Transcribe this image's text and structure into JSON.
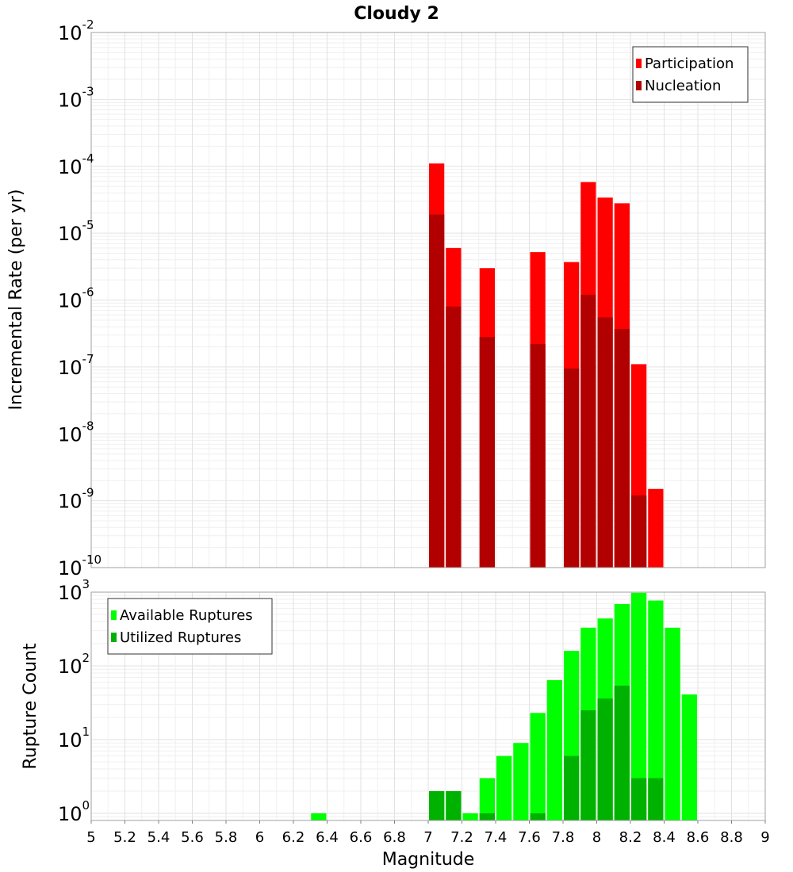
{
  "chart_data": [
    {
      "type": "bar",
      "title": "Cloudy 2",
      "xlabel": "",
      "ylabel": "Incremental Rate (per yr)",
      "yscale": "log",
      "ylim": [
        1e-10,
        0.01
      ],
      "xlim": [
        5,
        9
      ],
      "bar_width": 0.1,
      "y_tick_labels": [
        {
          "base": "10",
          "exp": "-10"
        },
        {
          "base": "10",
          "exp": "-9"
        },
        {
          "base": "10",
          "exp": "-8"
        },
        {
          "base": "10",
          "exp": "-7"
        },
        {
          "base": "10",
          "exp": "-6"
        },
        {
          "base": "10",
          "exp": "-5"
        },
        {
          "base": "10",
          "exp": "-4"
        },
        {
          "base": "10",
          "exp": "-3"
        },
        {
          "base": "10",
          "exp": "-2"
        }
      ],
      "legend": {
        "position": "top-right",
        "entries": [
          "Participation",
          "Nucleation"
        ]
      },
      "series": [
        {
          "name": "Participation",
          "color": "#ff0000",
          "x": [
            7.05,
            7.15,
            7.35,
            7.65,
            7.85,
            7.95,
            8.05,
            8.15,
            8.25,
            8.35
          ],
          "values": [
            0.00011,
            6e-06,
            3e-06,
            5.2e-06,
            3.7e-06,
            5.8e-05,
            3.4e-05,
            2.8e-05,
            1.1e-07,
            1.5e-09
          ]
        },
        {
          "name": "Nucleation",
          "color": "#b20000",
          "x": [
            7.05,
            7.15,
            7.35,
            7.65,
            7.85,
            7.95,
            8.05,
            8.15,
            8.25
          ],
          "values": [
            1.9e-05,
            8e-07,
            2.8e-07,
            2.2e-07,
            9.5e-08,
            1.2e-06,
            5.5e-07,
            3.7e-07,
            1.2e-09
          ]
        }
      ]
    },
    {
      "type": "bar",
      "title": "",
      "xlabel": "Magnitude",
      "ylabel": "Rupture Count",
      "yscale": "log",
      "ylim": [
        0.8,
        1000
      ],
      "xlim": [
        5,
        9
      ],
      "bar_width": 0.1,
      "x_ticks": [
        "5",
        "5.2",
        "5.4",
        "5.6",
        "5.8",
        "6",
        "6.2",
        "6.4",
        "6.6",
        "6.8",
        "7",
        "7.2",
        "7.4",
        "7.6",
        "7.8",
        "8",
        "8.2",
        "8.4",
        "8.6",
        "8.8",
        "9"
      ],
      "y_tick_labels": [
        {
          "base": "10",
          "exp": "0"
        },
        {
          "base": "10",
          "exp": "1"
        },
        {
          "base": "10",
          "exp": "2"
        },
        {
          "base": "10",
          "exp": "3"
        }
      ],
      "legend": {
        "position": "top-left",
        "entries": [
          "Available Ruptures",
          "Utilized Ruptures"
        ]
      },
      "series": [
        {
          "name": "Available Ruptures",
          "color": "#00ff00",
          "x": [
            6.35,
            7.05,
            7.15,
            7.25,
            7.35,
            7.45,
            7.55,
            7.65,
            7.75,
            7.85,
            7.95,
            8.05,
            8.15,
            8.25,
            8.35,
            8.45,
            8.55
          ],
          "values": [
            1,
            2,
            2,
            1,
            3,
            6,
            9,
            23,
            64,
            160,
            330,
            440,
            690,
            980,
            770,
            330,
            41
          ]
        },
        {
          "name": "Utilized Ruptures",
          "color": "#00b200",
          "x": [
            7.05,
            7.15,
            7.35,
            7.65,
            7.85,
            7.95,
            8.05,
            8.15,
            8.25,
            8.35
          ],
          "values": [
            2,
            2,
            1,
            1,
            6,
            25,
            36,
            54,
            3,
            3
          ]
        }
      ]
    }
  ]
}
